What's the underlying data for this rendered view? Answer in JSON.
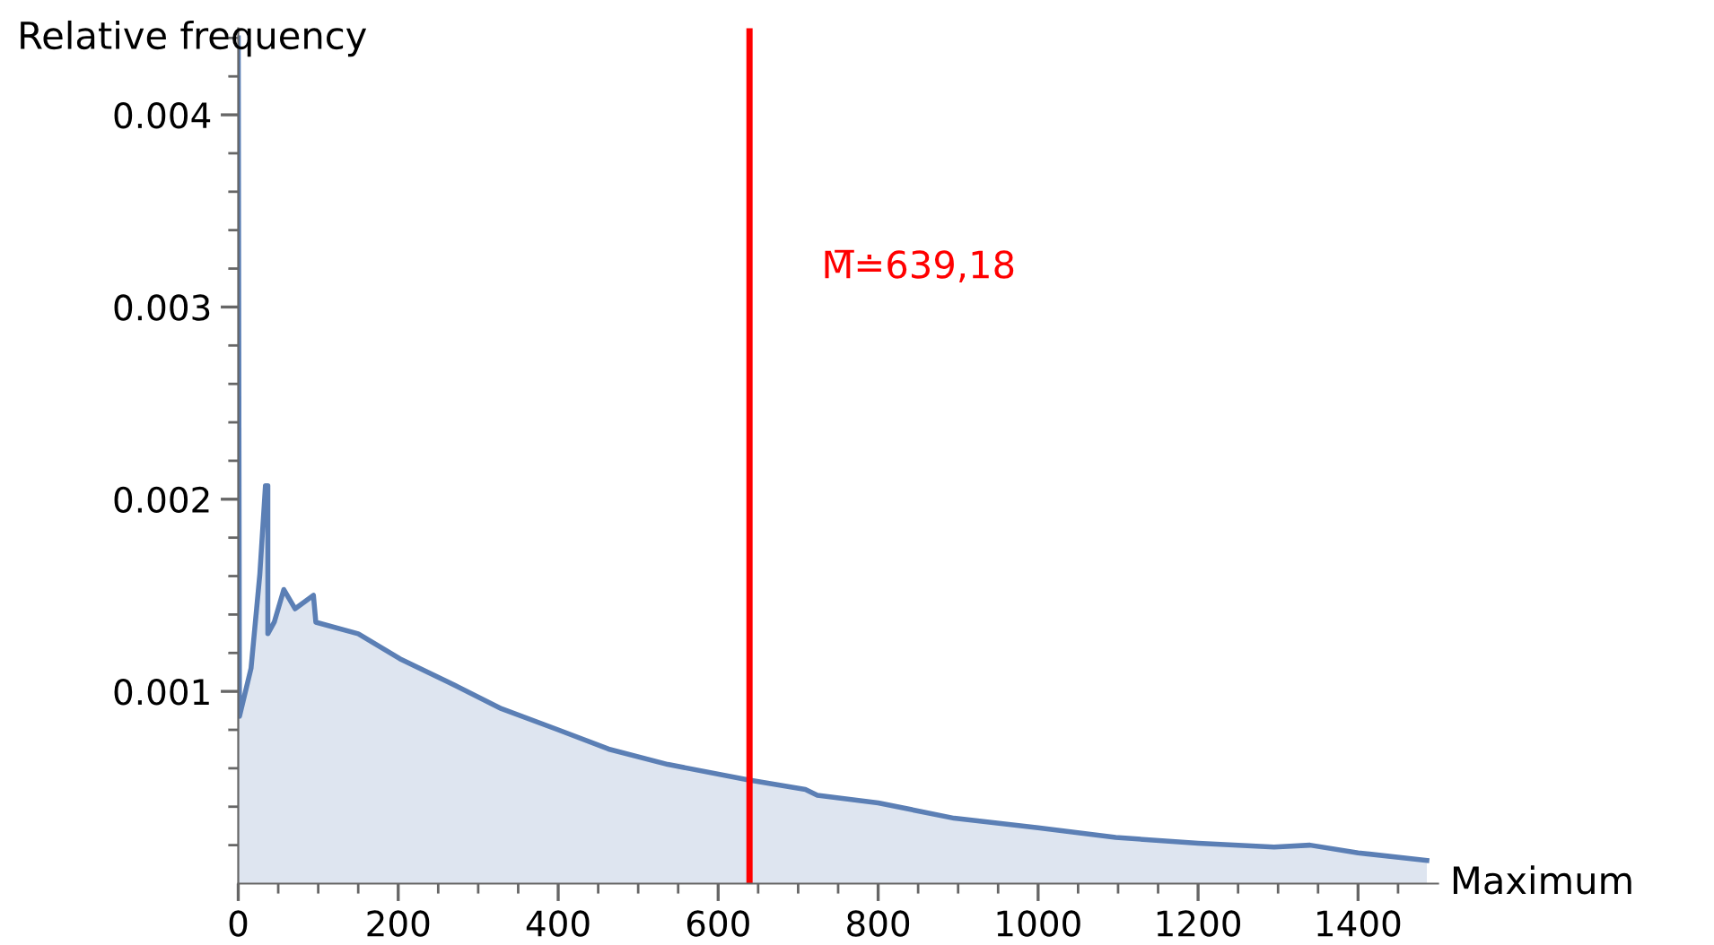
{
  "chart_data": {
    "type": "area",
    "xlabel": "Maximum",
    "ylabel": "Relative frequency",
    "xlim": [
      0,
      1500
    ],
    "ylim": [
      0,
      0.00445
    ],
    "xticks": [
      0,
      200,
      400,
      600,
      800,
      1000,
      1200,
      1400,
      {
        "value": 50,
        "label": null
      },
      {
        "value": 100,
        "label": null
      },
      {
        "value": 150,
        "label": null
      },
      {
        "value": 250,
        "label": null
      },
      {
        "value": 300,
        "label": null
      },
      {
        "value": 350,
        "label": null
      },
      {
        "value": 450,
        "label": null
      },
      {
        "value": 500,
        "label": null
      },
      {
        "value": 550,
        "label": null
      },
      {
        "value": 650,
        "label": null
      },
      {
        "value": 700,
        "label": null
      },
      {
        "value": 750,
        "label": null
      },
      {
        "value": 850,
        "label": null
      },
      {
        "value": 900,
        "label": null
      },
      {
        "value": 950,
        "label": null
      },
      {
        "value": 1050,
        "label": null
      },
      {
        "value": 1100,
        "label": null
      },
      {
        "value": 1150,
        "label": null
      },
      {
        "value": 1250,
        "label": null
      },
      {
        "value": 1300,
        "label": null
      },
      {
        "value": 1350,
        "label": null
      },
      {
        "value": 1450,
        "label": null
      }
    ],
    "yticks": [
      0.001,
      0.002,
      0.003,
      0.004,
      {
        "value": 0.0002,
        "label": null
      },
      {
        "value": 0.0004,
        "label": null
      },
      {
        "value": 0.0006,
        "label": null
      },
      {
        "value": 0.0008,
        "label": null
      },
      {
        "value": 0.0012,
        "label": null
      },
      {
        "value": 0.0014,
        "label": null
      },
      {
        "value": 0.0016,
        "label": null
      },
      {
        "value": 0.0018,
        "label": null
      },
      {
        "value": 0.0022,
        "label": null
      },
      {
        "value": 0.0024,
        "label": null
      },
      {
        "value": 0.0026,
        "label": null
      },
      {
        "value": 0.0028,
        "label": null
      },
      {
        "value": 0.0032,
        "label": null
      },
      {
        "value": 0.0034,
        "label": null
      },
      {
        "value": 0.0036,
        "label": null
      },
      {
        "value": 0.0038,
        "label": null
      },
      {
        "value": 0.0042,
        "label": null
      },
      {
        "value": 0.0044,
        "label": null
      }
    ],
    "grid": false,
    "series": [
      {
        "color": "#5b7fb5",
        "x": [
          0,
          1.5,
          16,
          27,
          34,
          37,
          37,
          45,
          57,
          71,
          94,
          97,
          150,
          202,
          262,
          329,
          400,
          463,
          537,
          637,
          709,
          724,
          800,
          895,
          1000,
          1097,
          1200,
          1295,
          1340,
          1400,
          1486
        ],
        "values": [
          0.0044,
          0.00087,
          0.00112,
          0.00161,
          0.00207,
          0.00207,
          0.0013,
          0.00136,
          0.00153,
          0.00143,
          0.0015,
          0.00136,
          0.0013,
          0.00117,
          0.00105,
          0.00091,
          0.0008,
          0.0007,
          0.00062,
          0.00054,
          0.00049,
          0.00046,
          0.00042,
          0.00034,
          0.00029,
          0.00024,
          0.00021,
          0.00019,
          0.0002,
          0.00016,
          0.00012
        ]
      }
    ],
    "ref_lines": [
      {
        "axis": "x",
        "value": 639.18,
        "label": "M̅≐639,18",
        "color": "#ff0000",
        "line_style": "solid"
      }
    ]
  }
}
